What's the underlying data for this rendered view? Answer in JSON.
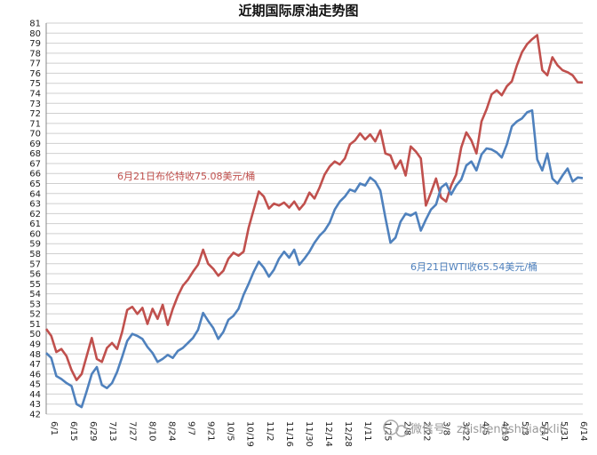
{
  "chart_data": {
    "type": "line",
    "title": "近期国际原油走势图",
    "ylim": [
      42,
      81
    ],
    "yticks": [
      42,
      43,
      44,
      45,
      46,
      47,
      48,
      49,
      50,
      51,
      52,
      53,
      54,
      55,
      56,
      57,
      58,
      59,
      60,
      61,
      62,
      63,
      64,
      65,
      66,
      67,
      68,
      69,
      70,
      71,
      72,
      73,
      74,
      75,
      76,
      77,
      78,
      79,
      80,
      81
    ],
    "x_tick_labels": [
      "6/1",
      "6/15",
      "6/29",
      "7/13",
      "7/27",
      "8/10",
      "8/24",
      "9/7",
      "9/21",
      "10/5",
      "10/19",
      "11/2",
      "11/16",
      "11/30",
      "12/14",
      "12/28",
      "1/11",
      "1/25",
      "2/8",
      "2/22",
      "3/8",
      "3/22",
      "4/5",
      "4/19",
      "5/3",
      "5/17",
      "5/31",
      "6/14"
    ],
    "grid": true,
    "series": [
      {
        "name": "布伦特",
        "color": "#c0504d",
        "values": [
          50.5,
          49.8,
          48.2,
          48.5,
          47.8,
          46.4,
          45.4,
          46.0,
          47.8,
          49.6,
          47.5,
          47.2,
          48.6,
          49.1,
          48.5,
          50.2,
          52.4,
          52.7,
          52.0,
          52.6,
          51.0,
          52.5,
          51.5,
          52.9,
          50.9,
          52.5,
          53.8,
          54.8,
          55.4,
          56.2,
          56.9,
          58.4,
          57.0,
          56.5,
          55.8,
          56.3,
          57.5,
          58.1,
          57.8,
          58.2,
          60.6,
          62.4,
          64.2,
          63.7,
          62.5,
          63.0,
          62.8,
          63.1,
          62.6,
          63.2,
          62.4,
          63.0,
          64.1,
          63.5,
          64.6,
          65.9,
          66.7,
          67.2,
          66.9,
          67.5,
          68.9,
          69.3,
          70.0,
          69.4,
          69.9,
          69.2,
          70.3,
          68.0,
          67.8,
          66.5,
          67.3,
          65.8,
          68.7,
          68.2,
          67.5,
          62.8,
          64.1,
          65.5,
          63.6,
          63.2,
          64.8,
          65.9,
          68.6,
          70.1,
          69.3,
          68.0,
          71.2,
          72.4,
          73.9,
          74.3,
          73.8,
          74.7,
          75.2,
          76.8,
          78.1,
          78.9,
          79.4,
          79.8,
          76.3,
          75.8,
          77.6,
          76.8,
          76.3,
          76.1,
          75.8,
          75.1,
          75.08
        ]
      },
      {
        "name": "WTI",
        "color": "#4f81bd",
        "values": [
          48.1,
          47.6,
          45.8,
          45.5,
          45.1,
          44.8,
          43.0,
          42.7,
          44.3,
          46.0,
          46.7,
          44.9,
          44.6,
          45.1,
          46.2,
          47.7,
          49.3,
          50.0,
          49.8,
          49.5,
          48.7,
          48.1,
          47.2,
          47.5,
          47.9,
          47.6,
          48.3,
          48.6,
          49.1,
          49.6,
          50.4,
          52.1,
          51.3,
          50.6,
          49.5,
          50.2,
          51.4,
          51.8,
          52.5,
          53.9,
          55.0,
          56.2,
          57.2,
          56.6,
          55.7,
          56.4,
          57.5,
          58.2,
          57.6,
          58.4,
          56.9,
          57.5,
          58.2,
          59.1,
          59.8,
          60.3,
          61.1,
          62.4,
          63.2,
          63.7,
          64.4,
          64.2,
          65.0,
          64.8,
          65.6,
          65.2,
          64.3,
          61.6,
          59.1,
          59.6,
          61.2,
          62.0,
          61.8,
          62.1,
          60.3,
          61.4,
          62.4,
          62.9,
          64.6,
          65.0,
          63.9,
          64.8,
          65.4,
          66.8,
          67.2,
          66.3,
          67.9,
          68.5,
          68.4,
          68.1,
          67.6,
          68.9,
          70.7,
          71.2,
          71.5,
          72.1,
          72.3,
          67.4,
          66.3,
          68.0,
          65.5,
          65.0,
          65.8,
          66.5,
          65.2,
          65.6,
          65.54
        ]
      }
    ],
    "annotations": [
      {
        "text": "6月21日布伦特收75.08美元/桶",
        "color": "#c0504d"
      },
      {
        "text": "6月21日WTI收65.54美元/桶",
        "color": "#4f81bd"
      }
    ],
    "watermark": "微信号：zaishengshuiagklil"
  }
}
